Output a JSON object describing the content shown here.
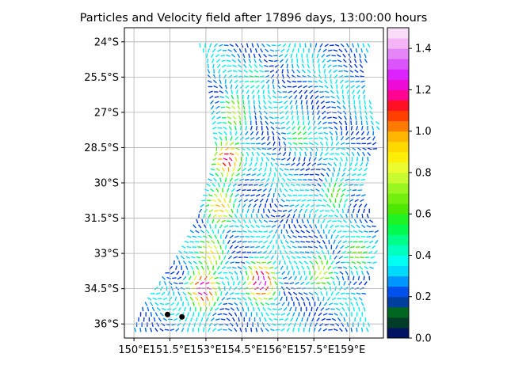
{
  "chart_data": {
    "type": "heatmap",
    "title": "Particles and Velocity field after 17896 days, 13:00:00 hours",
    "xlabel": "",
    "ylabel": "",
    "x_ticks": [
      {
        "value": 150,
        "label": "150°E"
      },
      {
        "value": 151.5,
        "label": "151.5°E"
      },
      {
        "value": 153,
        "label": "153°E"
      },
      {
        "value": 154.5,
        "label": "154.5°E"
      },
      {
        "value": 156,
        "label": "156°E"
      },
      {
        "value": 157.5,
        "label": "157.5°E"
      },
      {
        "value": 159,
        "label": "159°E"
      }
    ],
    "y_ticks": [
      {
        "value": -24,
        "label": "24°S"
      },
      {
        "value": -25.5,
        "label": "25.5°S"
      },
      {
        "value": -27,
        "label": "27°S"
      },
      {
        "value": -28.5,
        "label": "28.5°S"
      },
      {
        "value": -30,
        "label": "30°S"
      },
      {
        "value": -31.5,
        "label": "31.5°S"
      },
      {
        "value": -33,
        "label": "33°S"
      },
      {
        "value": -34.5,
        "label": "34.5°S"
      },
      {
        "value": -36,
        "label": "36°S"
      }
    ],
    "xlim": [
      149.6,
      160.4
    ],
    "ylim": [
      -36.6,
      -23.4
    ],
    "grid": true,
    "colorbar": {
      "vmin": 0.0,
      "vmax": 1.5,
      "ticks": [
        {
          "value": 0.0,
          "label": "0.0"
        },
        {
          "value": 0.2,
          "label": "0.2"
        },
        {
          "value": 0.4,
          "label": "0.4"
        },
        {
          "value": 0.6,
          "label": "0.6"
        },
        {
          "value": 0.8,
          "label": "0.8"
        },
        {
          "value": 1.0,
          "label": "1.0"
        },
        {
          "value": 1.2,
          "label": "1.2"
        },
        {
          "value": 1.4,
          "label": "1.4"
        }
      ],
      "colormap": "gist_ncar",
      "levels": 30
    },
    "particles": [
      {
        "lon": 151.4,
        "lat": -35.6
      },
      {
        "lon": 152.0,
        "lat": -35.7
      }
    ],
    "features": [
      {
        "lat": -25.5,
        "lon": 155.0,
        "speed": 0.5
      },
      {
        "lat": -27.0,
        "lon": 154.2,
        "speed": 0.8
      },
      {
        "lat": -29.0,
        "lon": 153.9,
        "speed": 1.2
      },
      {
        "lat": -31.0,
        "lon": 153.6,
        "speed": 1.0
      },
      {
        "lat": -33.0,
        "lon": 153.2,
        "speed": 0.9
      },
      {
        "lat": -34.5,
        "lon": 152.9,
        "speed": 1.3
      },
      {
        "lat": -34.2,
        "lon": 155.3,
        "speed": 1.35
      },
      {
        "lat": -33.8,
        "lon": 157.8,
        "speed": 0.8
      },
      {
        "lat": -33.0,
        "lon": 159.3,
        "speed": 0.7
      },
      {
        "lat": -30.5,
        "lon": 158.4,
        "speed": 0.65
      },
      {
        "lat": -28.0,
        "lon": 156.9,
        "speed": 0.6
      }
    ]
  }
}
